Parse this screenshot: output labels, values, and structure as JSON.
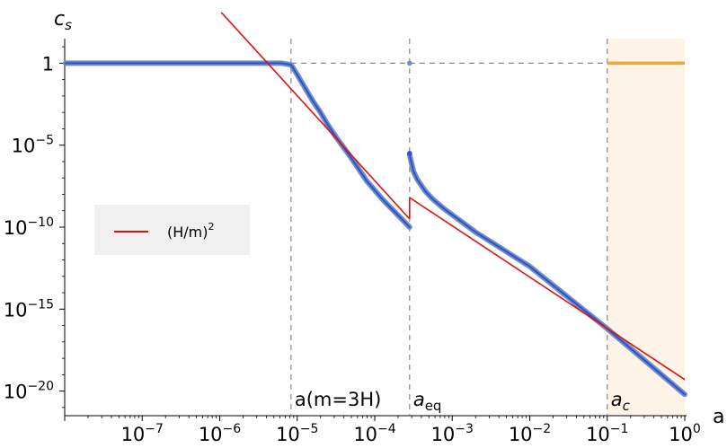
{
  "chart_data": {
    "type": "line",
    "xlabel": "a",
    "ylabel_base": "c",
    "ylabel_sub": "s",
    "xscale": "log",
    "yscale": "log",
    "xlim_log10": [
      -8.0,
      0.0
    ],
    "ylim_log10": [
      -21.5,
      1.5
    ],
    "x_ticks": [
      {
        "base": "10",
        "exp": "−7",
        "log10": -7
      },
      {
        "base": "10",
        "exp": "−6",
        "log10": -6
      },
      {
        "base": "10",
        "exp": "−5",
        "log10": -5
      },
      {
        "base": "10",
        "exp": "−4",
        "log10": -4
      },
      {
        "base": "10",
        "exp": "−3",
        "log10": -3
      },
      {
        "base": "10",
        "exp": "−2",
        "log10": -2
      },
      {
        "base": "10",
        "exp": "−1",
        "log10": -1
      },
      {
        "base": "10",
        "exp": "0",
        "log10": 0
      }
    ],
    "y_ticks": [
      {
        "base": "1",
        "exp": "",
        "log10": 0
      },
      {
        "base": "10",
        "exp": "−5",
        "log10": -5
      },
      {
        "base": "10",
        "exp": "−10",
        "log10": -10
      },
      {
        "base": "10",
        "exp": "−15",
        "log10": -15
      },
      {
        "base": "10",
        "exp": "−20",
        "log10": -20
      }
    ],
    "legend": {
      "label": "(H/m)",
      "sup": "2",
      "placement": "middle-left"
    },
    "vertical_markers": [
      {
        "log10_x": -5.08,
        "label": "a(m=3H)",
        "italic": false
      },
      {
        "log10_x": -3.55,
        "label_base": "a",
        "label_sub": "eq",
        "italic": true
      },
      {
        "log10_x": -1.0,
        "label_base": "a",
        "label_sub": "c",
        "italic": true
      }
    ],
    "shaded_region": {
      "from_log10": -1.0,
      "to_log10": 0.0,
      "color": "#fdf3e6"
    },
    "horizontal_ref_log10": 0,
    "series": [
      {
        "color": "#2f4fd6",
        "halo_color": "#6f8fc0",
        "points": [
          [
            -7.99,
            0.0
          ],
          [
            -5.2,
            0.0
          ],
          [
            -5.08,
            -0.1
          ],
          [
            -5.0,
            -0.7
          ],
          [
            -4.9,
            -1.5
          ],
          [
            -4.8,
            -2.3
          ],
          [
            -4.7,
            -3.0
          ],
          [
            -4.6,
            -3.8
          ],
          [
            -4.5,
            -4.5
          ],
          [
            -4.3,
            -5.8
          ],
          [
            -4.1,
            -7.2
          ],
          [
            -3.9,
            -8.3
          ],
          [
            -3.55,
            -10.0
          ]
        ]
      },
      {
        "color": "#2f4fd6",
        "halo_color": "#6f8fc0",
        "points": [
          [
            -3.55,
            -5.6
          ],
          [
            -3.5,
            -6.6
          ],
          [
            -3.45,
            -7.1
          ],
          [
            -3.35,
            -7.8
          ],
          [
            -3.25,
            -8.3
          ],
          [
            -3.1,
            -8.9
          ],
          [
            -2.9,
            -9.6
          ],
          [
            -2.7,
            -10.3
          ],
          [
            -2.4,
            -11.2
          ],
          [
            -2.0,
            -12.4
          ],
          [
            -1.5,
            -14.3
          ],
          [
            -1.0,
            -16.2
          ],
          [
            -0.5,
            -18.2
          ],
          [
            0.0,
            -20.2
          ]
        ]
      },
      {
        "color": "#e5a93e",
        "points": [
          [
            -1.0,
            0.0
          ],
          [
            0.0,
            0.0
          ]
        ]
      }
    ],
    "reference_line": {
      "color": "#e01010",
      "points": [
        [
          -5.98,
          3.1
        ],
        [
          -3.55,
          -9.5
        ]
      ],
      "points2": [
        [
          -3.55,
          -8.2
        ],
        [
          0.0,
          -19.3
        ]
      ]
    },
    "point_markers": [
      {
        "log10_x": -3.55,
        "log10_y": 0.0,
        "color": "#6f8fc0"
      },
      {
        "log10_x": -3.55,
        "log10_y": -5.5,
        "color": "#2f4fd6"
      }
    ]
  }
}
